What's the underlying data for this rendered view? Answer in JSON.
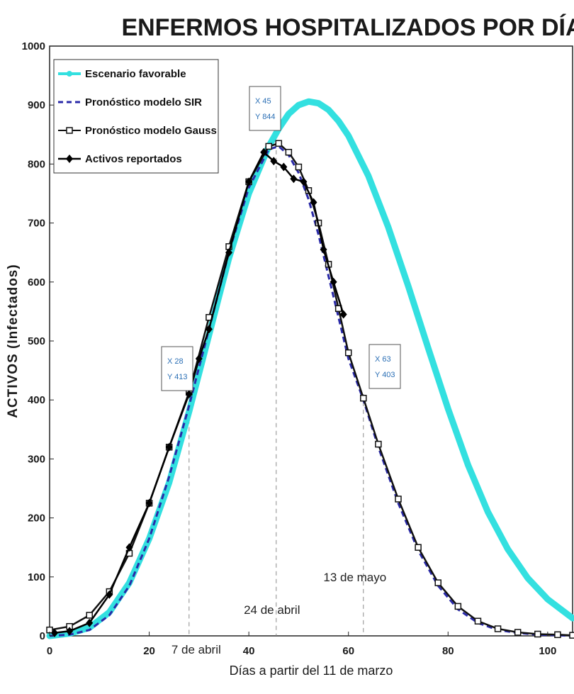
{
  "chart_data": {
    "type": "line",
    "title": "ENFERMOS HOSPITALIZADOS POR DÍA",
    "xlabel": "Días a partir del 11 de marzo",
    "ylabel": "ACTIVOS (Infectados)",
    "xlim": [
      0,
      105
    ],
    "ylim": [
      0,
      1000
    ],
    "xticks": [
      0,
      20,
      40,
      60,
      80,
      100
    ],
    "yticks": [
      0,
      100,
      200,
      300,
      400,
      500,
      600,
      700,
      800,
      900,
      1000
    ],
    "legend_position": "top-left",
    "series": [
      {
        "name": "Escenario favorable",
        "color": "#33e0e0",
        "style": "thick-solid",
        "x": [
          0,
          4,
          8,
          12,
          16,
          20,
          24,
          28,
          32,
          36,
          40,
          44,
          46,
          48,
          50,
          52,
          54,
          56,
          58,
          60,
          64,
          68,
          72,
          76,
          80,
          84,
          88,
          92,
          96,
          100,
          105
        ],
        "y": [
          0,
          4,
          14,
          40,
          90,
          165,
          260,
          380,
          510,
          640,
          750,
          830,
          860,
          885,
          900,
          906,
          903,
          892,
          873,
          848,
          780,
          693,
          593,
          488,
          385,
          290,
          210,
          147,
          98,
          62,
          30
        ]
      },
      {
        "name": "Pronóstico modelo SIR",
        "color": "#2a2aa8",
        "style": "dashed",
        "x": [
          0,
          4,
          8,
          12,
          16,
          20,
          24,
          28,
          32,
          36,
          40,
          44,
          46,
          48,
          50,
          52,
          54,
          56,
          58,
          60,
          63,
          66,
          70,
          74,
          78,
          82,
          86,
          90,
          94,
          98,
          102,
          105
        ],
        "y": [
          0,
          2,
          10,
          35,
          85,
          165,
          270,
          390,
          520,
          650,
          760,
          825,
          830,
          815,
          785,
          740,
          680,
          610,
          540,
          470,
          400,
          320,
          225,
          145,
          85,
          45,
          22,
          10,
          5,
          2,
          1,
          0
        ]
      },
      {
        "name": "Pronóstico modelo Gauss",
        "color": "#111111",
        "style": "line-square-markers",
        "x": [
          0,
          4,
          8,
          12,
          16,
          20,
          24,
          28,
          32,
          36,
          40,
          44,
          46,
          48,
          50,
          52,
          54,
          56,
          58,
          60,
          63,
          66,
          70,
          74,
          78,
          82,
          86,
          90,
          94,
          98,
          102,
          105
        ],
        "y": [
          10,
          16,
          35,
          75,
          140,
          225,
          320,
          413,
          540,
          660,
          770,
          830,
          835,
          820,
          795,
          755,
          700,
          630,
          555,
          480,
          403,
          325,
          232,
          150,
          90,
          50,
          25,
          12,
          6,
          3,
          2,
          1
        ]
      },
      {
        "name": "Activos reportados",
        "color": "#000000",
        "style": "line-diamond-markers",
        "x": [
          1,
          4,
          8,
          12,
          16,
          20,
          24,
          28,
          30,
          32,
          36,
          40,
          43,
          45,
          47,
          49,
          51,
          53,
          55,
          57,
          59
        ],
        "y": [
          5,
          8,
          22,
          70,
          150,
          225,
          320,
          410,
          470,
          520,
          650,
          770,
          820,
          805,
          795,
          775,
          770,
          735,
          655,
          600,
          545
        ]
      }
    ],
    "data_tips": [
      {
        "x_label": "X 28",
        "y_label": "Y 413"
      },
      {
        "x_label": "X 45",
        "y_label": "Y 844"
      },
      {
        "x_label": "X 63",
        "y_label": "Y 403"
      }
    ],
    "reference_lines": [
      {
        "x": 28,
        "label": "7 de abril"
      },
      {
        "x": 45.5,
        "label": "24 de abril"
      },
      {
        "x": 63,
        "label": "13 de mayo"
      }
    ]
  }
}
